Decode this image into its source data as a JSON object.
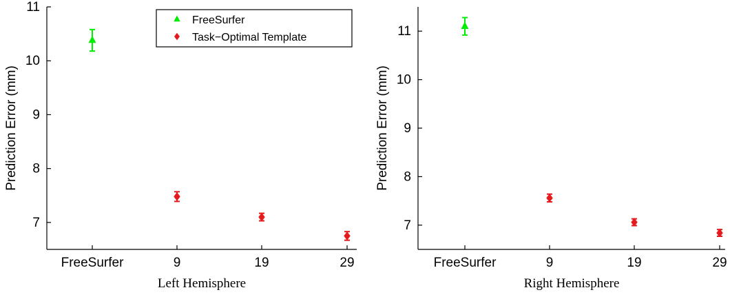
{
  "chart_data": [
    {
      "type": "scatter",
      "xlabel": "Left Hemisphere",
      "ylabel": "Prediction Error (mm)",
      "categories": [
        "FreeSurfer",
        "9",
        "19",
        "29"
      ],
      "yticks": [
        "7",
        "8",
        "9",
        "10",
        "11"
      ],
      "ylim": [
        6.5,
        11.0
      ],
      "legend": {
        "placement": "top-right",
        "entries": [
          "FreeSurfer",
          "Task−Optimal Template"
        ]
      },
      "series": [
        {
          "name": "FreeSurfer",
          "marker": "triangle",
          "color": "#00ee00",
          "points": [
            {
              "category": "FreeSurfer",
              "value": 10.38,
              "err": 0.2
            }
          ]
        },
        {
          "name": "Task−Optimal Template",
          "marker": "diamond",
          "color": "#e41a1c",
          "points": [
            {
              "category": "9",
              "value": 7.48,
              "err": 0.09
            },
            {
              "category": "19",
              "value": 7.1,
              "err": 0.07
            },
            {
              "category": "29",
              "value": 6.75,
              "err": 0.08
            }
          ]
        }
      ]
    },
    {
      "type": "scatter",
      "xlabel": "Right Hemisphere",
      "ylabel": "Prediction Error (mm)",
      "categories": [
        "FreeSurfer",
        "9",
        "19",
        "29"
      ],
      "yticks": [
        "7",
        "8",
        "9",
        "10",
        "11"
      ],
      "ylim": [
        6.5,
        11.5
      ],
      "legend": null,
      "series": [
        {
          "name": "FreeSurfer",
          "marker": "triangle",
          "color": "#00ee00",
          "points": [
            {
              "category": "FreeSurfer",
              "value": 11.1,
              "err": 0.18
            }
          ]
        },
        {
          "name": "Task−Optimal Template",
          "marker": "diamond",
          "color": "#e41a1c",
          "points": [
            {
              "category": "9",
              "value": 7.56,
              "err": 0.08
            },
            {
              "category": "19",
              "value": 7.06,
              "err": 0.07
            },
            {
              "category": "29",
              "value": 6.84,
              "err": 0.07
            }
          ]
        }
      ]
    }
  ]
}
